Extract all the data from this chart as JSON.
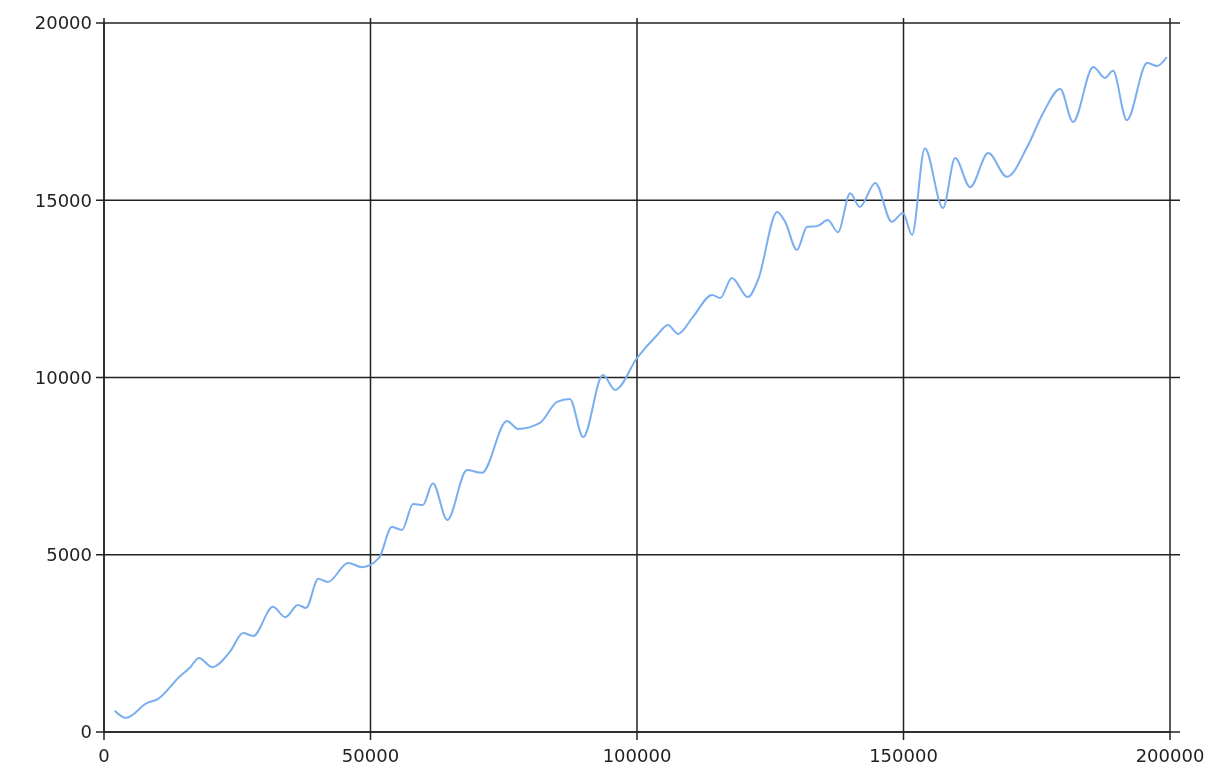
{
  "chart_data": {
    "type": "line",
    "xlim": [
      0,
      200000
    ],
    "ylim": [
      0,
      20000
    ],
    "xticks": [
      0,
      50000,
      100000,
      150000,
      200000
    ],
    "yticks": [
      0,
      5000,
      10000,
      15000,
      20000
    ],
    "grid": true,
    "marker": "none",
    "line_style": "solid",
    "series": [
      {
        "color": "#7aaef0",
        "x": [
          2000,
          4100,
          8100,
          10100,
          14300,
          16100,
          17800,
          20300,
          23600,
          26100,
          28000,
          31700,
          34000,
          36400,
          37900,
          40200,
          42000,
          45800,
          48400,
          51600,
          54000,
          55900,
          58000,
          59800,
          61700,
          64400,
          68100,
          70900,
          75600,
          77700,
          81800,
          85000,
          87400,
          89900,
          93600,
          95900,
          100000,
          103800,
          105800,
          107700,
          110500,
          114100,
          115600,
          117800,
          120800,
          122700,
          126300,
          127800,
          130000,
          131900,
          133800,
          135800,
          137700,
          140000,
          141800,
          144700,
          147800,
          149900,
          151600,
          154000,
          157400,
          159700,
          162500,
          165900,
          169400,
          173200,
          176200,
          179400,
          181800,
          185600,
          187800,
          189300,
          191900,
          195700,
          197600,
          199400
        ],
        "values": [
          600,
          400,
          820,
          930,
          1580,
          1810,
          2090,
          1830,
          2260,
          2790,
          2710,
          3530,
          3240,
          3580,
          3500,
          4320,
          4230,
          4770,
          4650,
          4910,
          5780,
          5700,
          6430,
          6400,
          7020,
          5980,
          7390,
          7310,
          8770,
          8550,
          8720,
          9310,
          9390,
          8320,
          10070,
          9650,
          10550,
          11200,
          11480,
          11230,
          11710,
          12330,
          12240,
          12810,
          12270,
          12750,
          14670,
          14390,
          13600,
          14250,
          14270,
          14440,
          14100,
          15200,
          14810,
          15490,
          14390,
          14640,
          14020,
          16470,
          14780,
          16190,
          15370,
          16330,
          15660,
          16500,
          17460,
          18140,
          17210,
          18760,
          18450,
          18650,
          17260,
          18870,
          18790,
          19040
        ]
      }
    ]
  }
}
